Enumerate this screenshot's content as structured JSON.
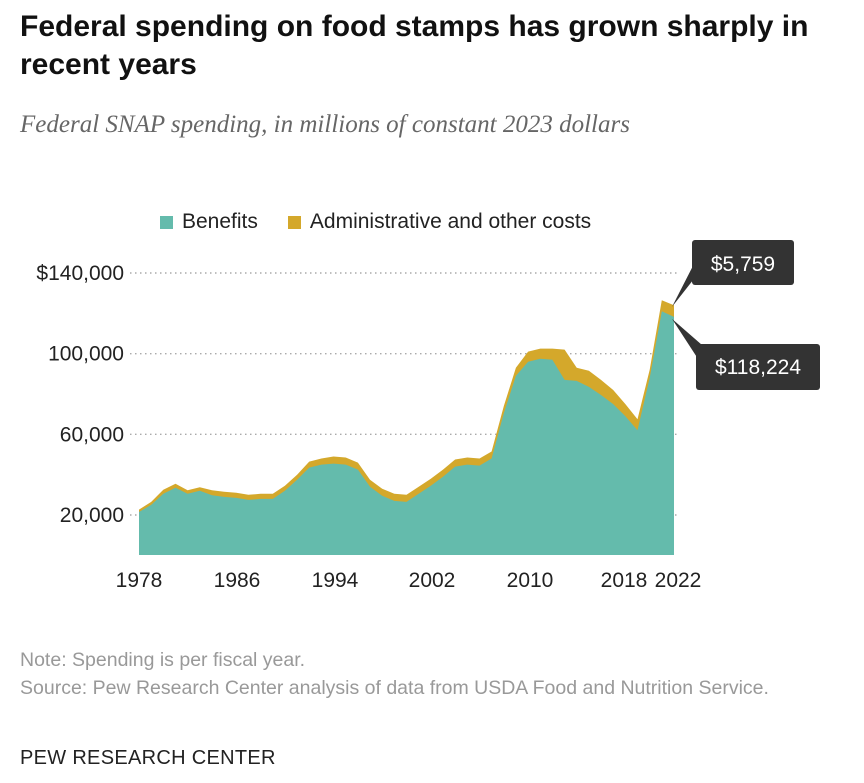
{
  "header": {
    "title": "Federal spending on food stamps has grown sharply in recent years",
    "subtitle": "Federal SNAP spending, in millions of constant 2023 dollars"
  },
  "legend": [
    {
      "label": "Benefits",
      "color": "#64bbac"
    },
    {
      "label": "Administrative and other costs",
      "color": "#d4a82b"
    }
  ],
  "chart_data": {
    "type": "area",
    "stacked": true,
    "x": [
      1978,
      1979,
      1980,
      1981,
      1982,
      1983,
      1984,
      1985,
      1986,
      1987,
      1988,
      1989,
      1990,
      1991,
      1992,
      1993,
      1994,
      1995,
      1996,
      1997,
      1998,
      1999,
      2000,
      2001,
      2002,
      2003,
      2004,
      2005,
      2006,
      2007,
      2008,
      2009,
      2010,
      2011,
      2012,
      2013,
      2014,
      2015,
      2016,
      2017,
      2018,
      2019,
      2020,
      2021,
      2022
    ],
    "series": [
      {
        "name": "Benefits",
        "color": "#64bbac",
        "values": [
          21500,
          25000,
          30500,
          33500,
          30500,
          32000,
          29800,
          29000,
          28500,
          27500,
          28000,
          28000,
          32000,
          37500,
          43500,
          45000,
          45500,
          45000,
          42500,
          34000,
          29500,
          27000,
          26500,
          30500,
          34500,
          39000,
          44000,
          45000,
          44500,
          48000,
          70500,
          89000,
          96000,
          97500,
          97000,
          87000,
          86500,
          83500,
          79500,
          75000,
          69000,
          62000,
          88000,
          121000,
          118224
        ]
      },
      {
        "name": "Administrative and other costs",
        "color": "#d4a82b",
        "values": [
          1200,
          1500,
          2000,
          2000,
          1800,
          1800,
          2500,
          2500,
          2500,
          2500,
          2500,
          2500,
          2500,
          2500,
          3000,
          3000,
          3500,
          3500,
          3500,
          3500,
          3500,
          3500,
          3500,
          3500,
          3500,
          3500,
          3500,
          3500,
          3500,
          3500,
          3500,
          4000,
          5000,
          5000,
          5500,
          15000,
          6500,
          8000,
          7500,
          7000,
          6000,
          5500,
          4000,
          5500,
          5759
        ]
      }
    ],
    "xticks": [
      "1978",
      "1986",
      "1994",
      "2002",
      "2010",
      "2018",
      "2022"
    ],
    "yticks": [
      "20,000",
      "60,000",
      "100,000",
      "$140,000"
    ],
    "ylim": [
      0,
      140000
    ],
    "annotations": [
      {
        "label": "$5,759"
      },
      {
        "label": "$118,224"
      }
    ]
  },
  "notes": {
    "note": "Note: Spending is per fiscal year.",
    "source": "Source: Pew Research Center analysis of data from USDA Food and Nutrition Service."
  },
  "footer": {
    "brand": "PEW RESEARCH CENTER"
  }
}
